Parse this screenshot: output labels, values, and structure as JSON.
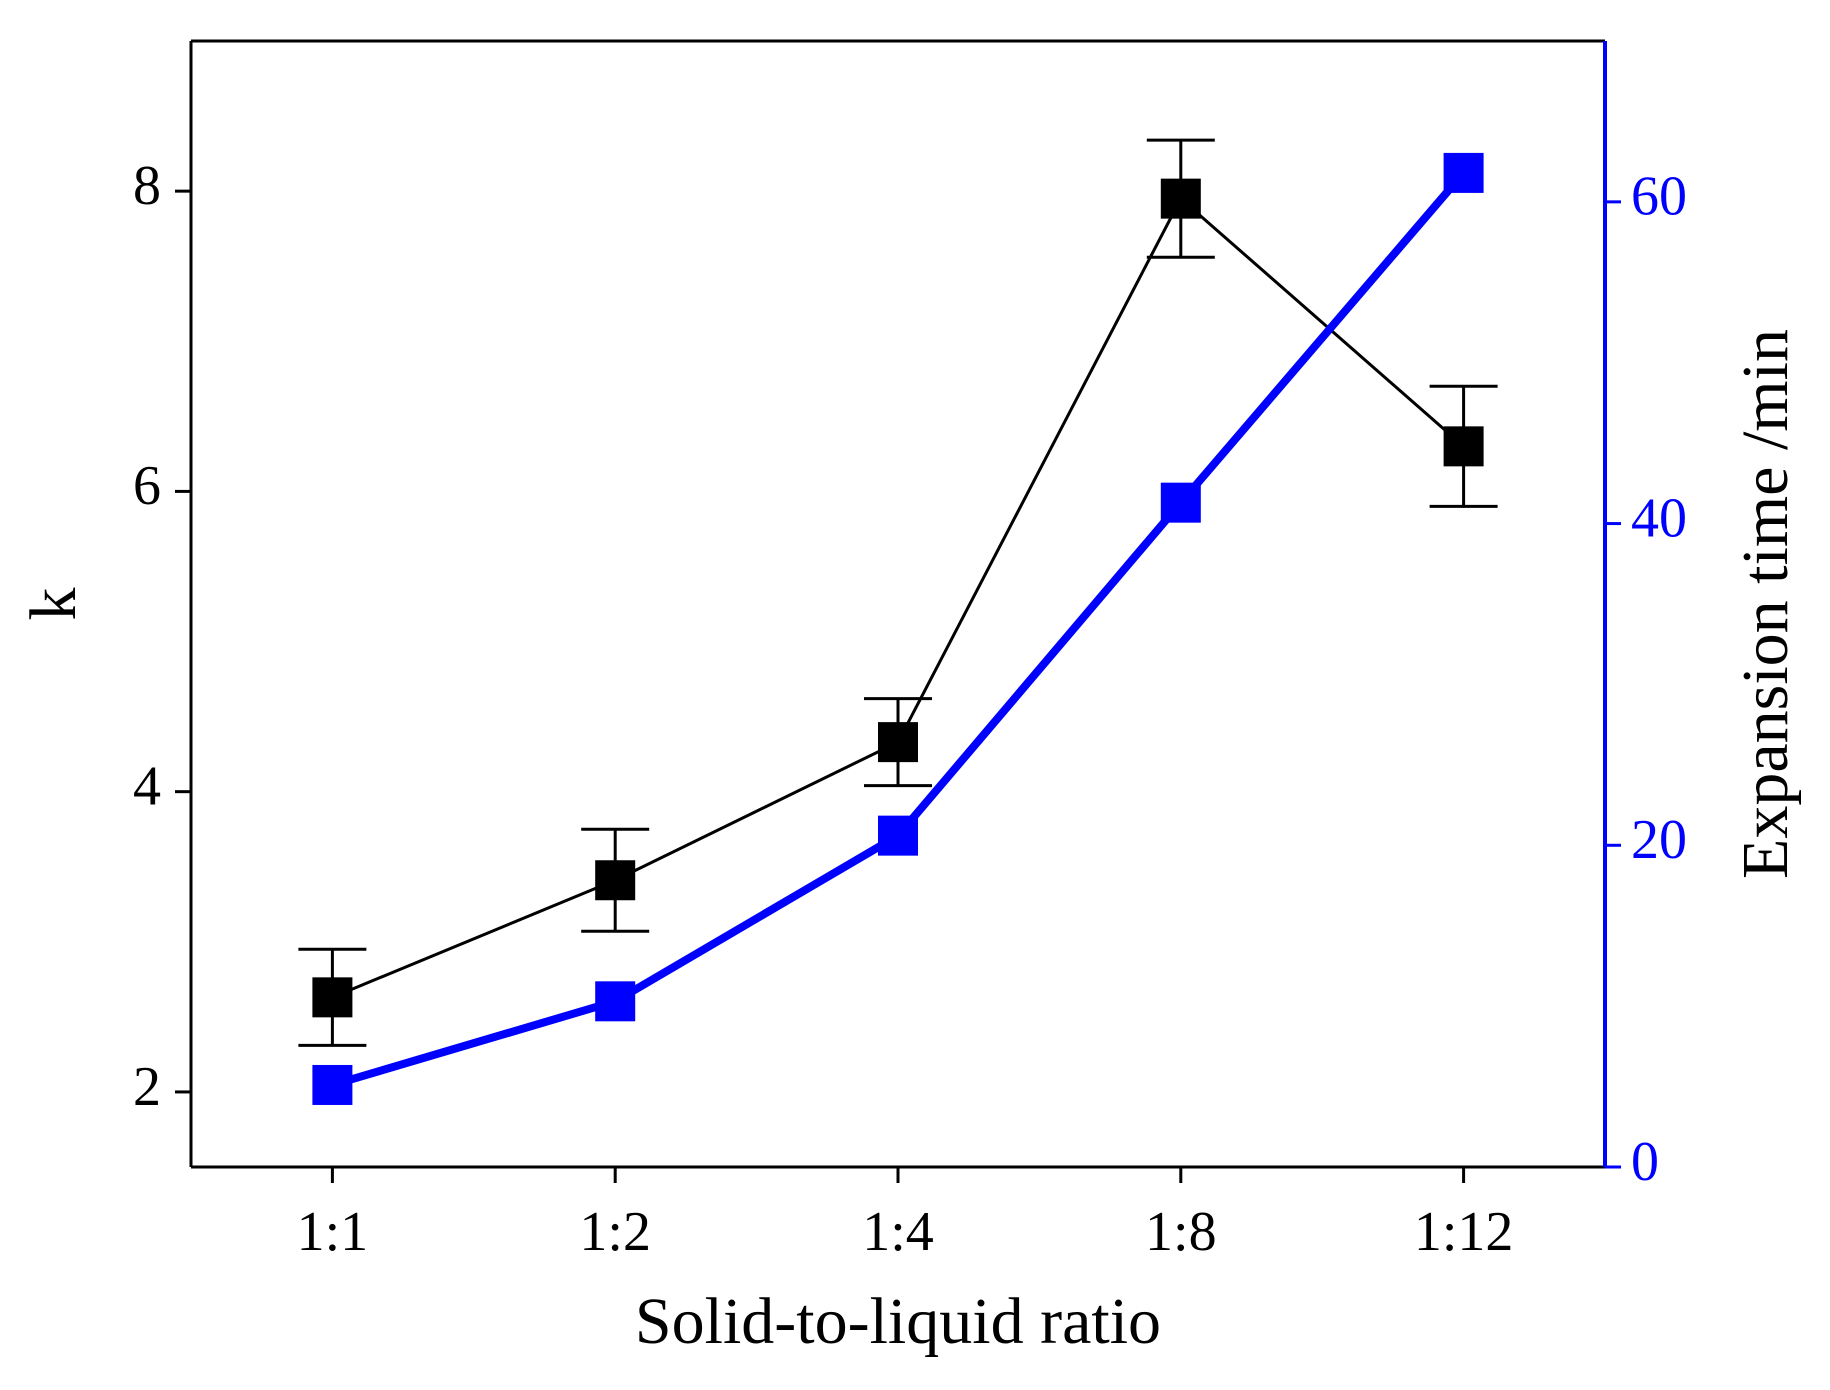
{
  "chart_data": {
    "type": "line",
    "xlabel": "Solid-to-liquid ratio",
    "ylabel": "k",
    "y2label": "Expansion time /min",
    "categories": [
      "1:1",
      "1:2",
      "1:4",
      "1:8",
      "1:12"
    ],
    "ylim": [
      1.5,
      9
    ],
    "yticks": [
      2,
      4,
      6,
      8
    ],
    "y2lim": [
      0,
      70
    ],
    "y2ticks": [
      0,
      20,
      40,
      60
    ],
    "y2color": "#0000ff",
    "series": [
      {
        "color": "#000000",
        "values": [
          2.63,
          3.41,
          4.33,
          7.95,
          6.3
        ],
        "errors": [
          0.32,
          0.34,
          0.29,
          0.39,
          0.4
        ]
      },
      {
        "color": "#0000ff",
        "axis": "y2",
        "values": [
          5.1,
          10.3,
          20.6,
          41.3,
          61.8
        ]
      }
    ]
  }
}
